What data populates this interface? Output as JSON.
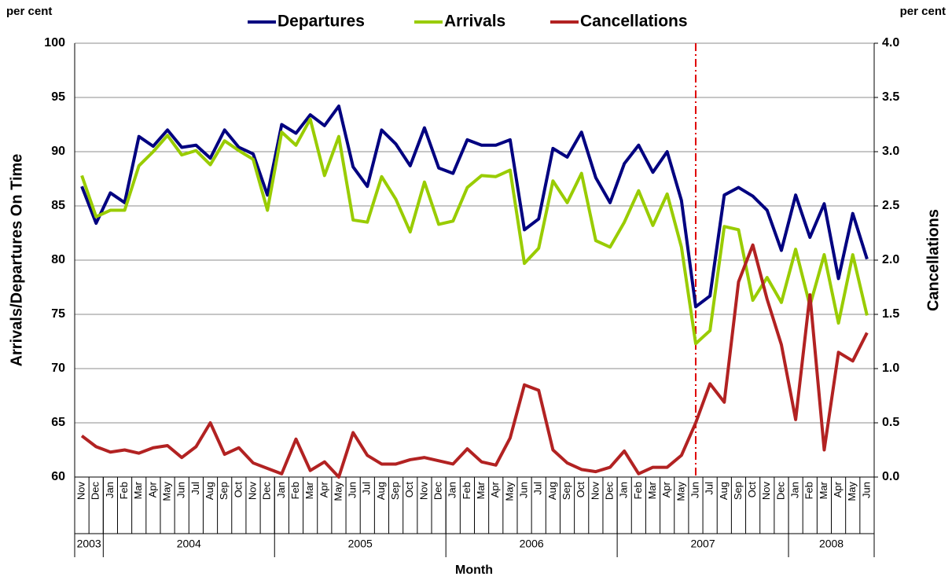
{
  "chart_data": {
    "type": "line",
    "y_unit_left": "per cent",
    "y_unit_right": "per cent",
    "ylabel": "Arrivals/Departures On Time",
    "y2label": "Cancellations",
    "xlabel": "Month",
    "categories": [
      "Nov",
      "Dec",
      "Jan",
      "Feb",
      "Mar",
      "Apr",
      "May",
      "Jun",
      "Jul",
      "Aug",
      "Sep",
      "Oct",
      "Nov",
      "Dec",
      "Jan",
      "Feb",
      "Mar",
      "Apr",
      "May",
      "Jun",
      "Jul",
      "Aug",
      "Sep",
      "Oct",
      "Nov",
      "Dec",
      "Jan",
      "Feb",
      "Mar",
      "Apr",
      "May",
      "Jun",
      "Jul",
      "Aug",
      "Sep",
      "Oct",
      "Nov",
      "Dec",
      "Jan",
      "Feb",
      "Mar",
      "Apr",
      "May",
      "Jun",
      "Jul",
      "Aug",
      "Sep",
      "Oct",
      "Nov",
      "Dec",
      "Jan",
      "Feb",
      "Mar",
      "Apr",
      "May",
      "Jun"
    ],
    "year_labels": [
      "2003",
      null,
      "2004",
      null,
      null,
      null,
      null,
      null,
      null,
      null,
      null,
      null,
      null,
      null,
      "2005",
      null,
      null,
      null,
      null,
      null,
      null,
      null,
      null,
      null,
      null,
      null,
      "2006",
      null,
      null,
      null,
      null,
      null,
      null,
      null,
      null,
      null,
      null,
      null,
      "2007",
      null,
      null,
      null,
      null,
      null,
      null,
      null,
      null,
      null,
      null,
      null,
      "2008",
      null,
      null,
      null,
      null,
      null
    ],
    "series": [
      {
        "name": "Departures",
        "color": "#000080",
        "axis": "y",
        "values": [
          86.8,
          83.4,
          86.2,
          85.3,
          91.4,
          90.5,
          92.0,
          90.4,
          90.6,
          89.4,
          92.0,
          90.4,
          89.8,
          86.0,
          92.5,
          91.7,
          93.4,
          92.4,
          94.2,
          88.6,
          86.8,
          92.0,
          90.7,
          88.7,
          92.2,
          88.5,
          88.0,
          91.1,
          90.6,
          90.6,
          91.1,
          82.8,
          83.8,
          90.3,
          89.5,
          91.8,
          87.6,
          85.3,
          88.9,
          90.6,
          88.1,
          90.0,
          85.5,
          75.7,
          76.7,
          86.0,
          86.7,
          85.9,
          84.6,
          80.9,
          86.0,
          82.1,
          85.2,
          78.3,
          84.3,
          80.1
        ]
      },
      {
        "name": "Arrivals",
        "color": "#99cc00",
        "axis": "y",
        "values": [
          87.8,
          84.0,
          84.6,
          84.6,
          88.7,
          90.0,
          91.5,
          89.7,
          90.1,
          88.8,
          91.0,
          90.1,
          89.3,
          84.6,
          91.8,
          90.6,
          93.0,
          87.8,
          91.4,
          83.7,
          83.5,
          87.7,
          85.6,
          82.6,
          87.2,
          83.3,
          83.6,
          86.7,
          87.8,
          87.7,
          88.3,
          79.7,
          81.1,
          87.3,
          85.3,
          88.0,
          81.8,
          81.2,
          83.5,
          86.4,
          83.2,
          86.1,
          81.2,
          72.3,
          73.5,
          83.1,
          82.8,
          76.3,
          78.4,
          76.1,
          81.0,
          75.8,
          80.5,
          74.2,
          80.5,
          74.9
        ]
      },
      {
        "name": "Cancellations",
        "color": "#b22222",
        "axis": "y2",
        "values": [
          0.38,
          0.28,
          0.23,
          0.25,
          0.22,
          0.27,
          0.29,
          0.18,
          0.28,
          0.5,
          0.21,
          0.27,
          0.13,
          0.08,
          0.03,
          0.35,
          0.06,
          0.14,
          0.0,
          0.41,
          0.2,
          0.12,
          0.12,
          0.16,
          0.18,
          0.15,
          0.12,
          0.26,
          0.14,
          0.11,
          0.36,
          0.85,
          0.8,
          0.25,
          0.13,
          0.07,
          0.05,
          0.09,
          0.24,
          0.03,
          0.09,
          0.09,
          0.2,
          0.5,
          0.86,
          0.69,
          1.8,
          2.14,
          1.64,
          1.22,
          0.53,
          1.68,
          0.25,
          1.15,
          1.07,
          1.33
        ]
      }
    ],
    "ylim": [
      60,
      100
    ],
    "yticks": [
      60,
      65,
      70,
      75,
      80,
      85,
      90,
      95,
      100
    ],
    "y2lim": [
      0,
      4
    ],
    "y2ticks": [
      {
        "value": 0,
        "label": "0.0"
      },
      0.5,
      {
        "value": 1,
        "label": "1.0"
      },
      1.5,
      {
        "value": 2,
        "label": "2.0"
      },
      2.5,
      {
        "value": 3,
        "label": "3.0"
      },
      3.5,
      {
        "value": 4,
        "label": "4.0"
      }
    ],
    "grid": true,
    "legend": "top",
    "vline": {
      "month": "Jun",
      "year": "2007",
      "color": "#e00000"
    }
  }
}
